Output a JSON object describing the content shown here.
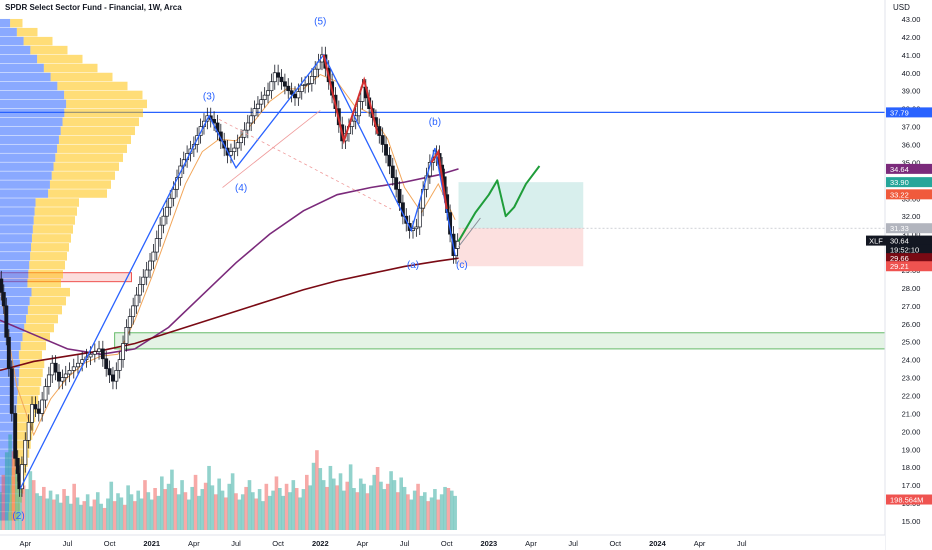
{
  "header": {
    "title": "SPDR Select Sector Fund - Financial, 1W, Arca",
    "currency": "USD",
    "ticker": "XLF"
  },
  "chart_data": {
    "type": "candlestick",
    "y_range": [
      14.5,
      43.5
    ],
    "y_ticks": [
      15,
      16,
      17,
      18,
      19,
      20,
      21,
      22,
      23,
      24,
      25,
      26,
      27,
      28,
      29,
      30,
      31,
      32,
      33,
      34,
      35,
      36,
      37,
      38,
      39,
      40,
      41,
      42,
      43
    ],
    "y_tick_labels": [
      "15.00",
      "16.00",
      "17.00",
      "18.00",
      "19.00",
      "20.00",
      "21.00",
      "22.00",
      "23.00",
      "24.00",
      "25.00",
      "26.00",
      "27.00",
      "28.00",
      "29.00",
      "30.00",
      "31.00",
      "32.00",
      "33.00",
      "34.00",
      "35.00",
      "36.00",
      "37.00",
      "38.00",
      "39.00",
      "40.00",
      "41.00",
      "42.00",
      "43.00"
    ],
    "x_range": [
      2020.1,
      2025.35
    ],
    "x_ticks": [
      {
        "x": 2020.25,
        "label": "Apr"
      },
      {
        "x": 2020.5,
        "label": "Jul"
      },
      {
        "x": 2020.75,
        "label": "Oct"
      },
      {
        "x": 2021.0,
        "label": "2021"
      },
      {
        "x": 2021.25,
        "label": "Apr"
      },
      {
        "x": 2021.5,
        "label": "Jul"
      },
      {
        "x": 2021.75,
        "label": "Oct"
      },
      {
        "x": 2022.0,
        "label": "2022"
      },
      {
        "x": 2022.25,
        "label": "Apr"
      },
      {
        "x": 2022.5,
        "label": "Jul"
      },
      {
        "x": 2022.75,
        "label": "Oct"
      },
      {
        "x": 2023.0,
        "label": "2023"
      },
      {
        "x": 2023.25,
        "label": "Apr"
      },
      {
        "x": 2023.5,
        "label": "Jul"
      },
      {
        "x": 2023.75,
        "label": "Oct"
      },
      {
        "x": 2024.0,
        "label": "2024"
      },
      {
        "x": 2024.25,
        "label": "Apr"
      },
      {
        "x": 2024.5,
        "label": "Jul"
      }
    ],
    "price_path": [
      [
        2020.1,
        28.5
      ],
      [
        2020.13,
        27.0
      ],
      [
        2020.16,
        23.5
      ],
      [
        2020.2,
        18.5
      ],
      [
        2020.22,
        16.8
      ],
      [
        2020.26,
        19.5
      ],
      [
        2020.3,
        21.5
      ],
      [
        2020.34,
        21.0
      ],
      [
        2020.38,
        22.5
      ],
      [
        2020.42,
        23.8
      ],
      [
        2020.46,
        22.8
      ],
      [
        2020.5,
        23.2
      ],
      [
        2020.55,
        23.6
      ],
      [
        2020.6,
        24.0
      ],
      [
        2020.65,
        24.3
      ],
      [
        2020.7,
        24.6
      ],
      [
        2020.74,
        23.5
      ],
      [
        2020.78,
        22.8
      ],
      [
        2020.82,
        24.0
      ],
      [
        2020.86,
        25.8
      ],
      [
        2020.9,
        27.0
      ],
      [
        2020.94,
        28.2
      ],
      [
        2020.98,
        29.0
      ],
      [
        2021.02,
        30.0
      ],
      [
        2021.06,
        31.5
      ],
      [
        2021.1,
        32.5
      ],
      [
        2021.14,
        33.5
      ],
      [
        2021.18,
        34.8
      ],
      [
        2021.22,
        35.5
      ],
      [
        2021.26,
        36.0
      ],
      [
        2021.3,
        37.0
      ],
      [
        2021.34,
        37.6
      ],
      [
        2021.38,
        37.2
      ],
      [
        2021.42,
        36.2
      ],
      [
        2021.46,
        35.4
      ],
      [
        2021.5,
        35.8
      ],
      [
        2021.54,
        36.4
      ],
      [
        2021.58,
        37.2
      ],
      [
        2021.62,
        38.0
      ],
      [
        2021.66,
        38.5
      ],
      [
        2021.7,
        39.0
      ],
      [
        2021.74,
        40.0
      ],
      [
        2021.78,
        39.5
      ],
      [
        2021.82,
        39.0
      ],
      [
        2021.86,
        38.6
      ],
      [
        2021.9,
        39.3
      ],
      [
        2021.94,
        39.4
      ],
      [
        2021.98,
        40.2
      ],
      [
        2022.02,
        41.0
      ],
      [
        2022.06,
        39.5
      ],
      [
        2022.1,
        38.0
      ],
      [
        2022.14,
        36.2
      ],
      [
        2022.18,
        37.0
      ],
      [
        2022.22,
        37.6
      ],
      [
        2022.26,
        39.2
      ],
      [
        2022.3,
        38.0
      ],
      [
        2022.34,
        37.0
      ],
      [
        2022.38,
        36.0
      ],
      [
        2022.42,
        34.8
      ],
      [
        2022.46,
        33.5
      ],
      [
        2022.5,
        32.0
      ],
      [
        2022.54,
        31.2
      ],
      [
        2022.58,
        31.4
      ],
      [
        2022.62,
        33.5
      ],
      [
        2022.66,
        35.0
      ],
      [
        2022.7,
        35.5
      ],
      [
        2022.73,
        34.2
      ],
      [
        2022.76,
        32.2
      ],
      [
        2022.8,
        29.8
      ],
      [
        2022.82,
        30.6
      ]
    ],
    "volume": [
      [
        2020.1,
        7.2
      ],
      [
        2020.12,
        10.5
      ],
      [
        2020.14,
        14.8
      ],
      [
        2020.16,
        18.2
      ],
      [
        2020.18,
        15.0
      ],
      [
        2020.2,
        11.5
      ],
      [
        2020.22,
        9.8
      ],
      [
        2020.24,
        8.5
      ],
      [
        2020.26,
        7.8
      ],
      [
        2020.28,
        11.2
      ],
      [
        2020.3,
        9.5
      ],
      [
        2020.32,
        7.0
      ],
      [
        2020.34,
        6.5
      ],
      [
        2020.36,
        8.2
      ],
      [
        2020.38,
        6.0
      ],
      [
        2020.4,
        7.5
      ],
      [
        2020.42,
        5.8
      ],
      [
        2020.44,
        6.8
      ],
      [
        2020.46,
        5.2
      ],
      [
        2020.48,
        7.8
      ],
      [
        2020.5,
        6.5
      ],
      [
        2020.52,
        5.0
      ],
      [
        2020.54,
        8.8
      ],
      [
        2020.56,
        6.2
      ],
      [
        2020.58,
        4.8
      ],
      [
        2020.6,
        5.5
      ],
      [
        2020.62,
        6.8
      ],
      [
        2020.64,
        4.5
      ],
      [
        2020.66,
        5.8
      ],
      [
        2020.68,
        7.2
      ],
      [
        2020.7,
        5.0
      ],
      [
        2020.72,
        4.2
      ],
      [
        2020.74,
        6.0
      ],
      [
        2020.76,
        9.2
      ],
      [
        2020.78,
        5.5
      ],
      [
        2020.8,
        7.0
      ],
      [
        2020.82,
        6.2
      ],
      [
        2020.84,
        4.8
      ],
      [
        2020.86,
        8.5
      ],
      [
        2020.88,
        6.8
      ],
      [
        2020.9,
        5.5
      ],
      [
        2020.92,
        7.5
      ],
      [
        2020.94,
        6.0
      ],
      [
        2020.96,
        9.5
      ],
      [
        2020.98,
        7.2
      ],
      [
        2021.0,
        5.8
      ],
      [
        2021.02,
        8.0
      ],
      [
        2021.04,
        6.5
      ],
      [
        2021.06,
        10.2
      ],
      [
        2021.08,
        7.8
      ],
      [
        2021.1,
        8.8
      ],
      [
        2021.12,
        11.5
      ],
      [
        2021.14,
        8.0
      ],
      [
        2021.16,
        6.8
      ],
      [
        2021.18,
        9.5
      ],
      [
        2021.2,
        7.2
      ],
      [
        2021.22,
        5.8
      ],
      [
        2021.24,
        8.2
      ],
      [
        2021.26,
        10.5
      ],
      [
        2021.28,
        6.5
      ],
      [
        2021.3,
        7.8
      ],
      [
        2021.32,
        9.0
      ],
      [
        2021.34,
        12.2
      ],
      [
        2021.36,
        8.5
      ],
      [
        2021.38,
        6.8
      ],
      [
        2021.4,
        9.8
      ],
      [
        2021.42,
        7.5
      ],
      [
        2021.44,
        6.2
      ],
      [
        2021.46,
        8.8
      ],
      [
        2021.48,
        10.8
      ],
      [
        2021.5,
        7.0
      ],
      [
        2021.52,
        5.8
      ],
      [
        2021.54,
        6.8
      ],
      [
        2021.56,
        8.2
      ],
      [
        2021.58,
        9.5
      ],
      [
        2021.6,
        7.2
      ],
      [
        2021.62,
        6.0
      ],
      [
        2021.64,
        7.8
      ],
      [
        2021.66,
        5.5
      ],
      [
        2021.68,
        8.8
      ],
      [
        2021.7,
        6.5
      ],
      [
        2021.72,
        7.5
      ],
      [
        2021.74,
        10.2
      ],
      [
        2021.76,
        8.0
      ],
      [
        2021.78,
        6.5
      ],
      [
        2021.8,
        8.8
      ],
      [
        2021.82,
        7.2
      ],
      [
        2021.84,
        9.5
      ],
      [
        2021.86,
        8.0
      ],
      [
        2021.88,
        6.2
      ],
      [
        2021.9,
        7.8
      ],
      [
        2021.92,
        10.5
      ],
      [
        2021.94,
        8.5
      ],
      [
        2021.96,
        12.8
      ],
      [
        2021.98,
        15.2
      ],
      [
        2022.0,
        11.8
      ],
      [
        2022.02,
        9.5
      ],
      [
        2022.04,
        8.2
      ],
      [
        2022.06,
        12.2
      ],
      [
        2022.08,
        9.8
      ],
      [
        2022.1,
        8.5
      ],
      [
        2022.12,
        10.8
      ],
      [
        2022.14,
        7.5
      ],
      [
        2022.16,
        9.2
      ],
      [
        2022.18,
        12.5
      ],
      [
        2022.2,
        8.0
      ],
      [
        2022.22,
        7.2
      ],
      [
        2022.24,
        9.8
      ],
      [
        2022.26,
        8.8
      ],
      [
        2022.28,
        7.0
      ],
      [
        2022.3,
        8.5
      ],
      [
        2022.32,
        10.5
      ],
      [
        2022.34,
        12.0
      ],
      [
        2022.36,
        9.2
      ],
      [
        2022.38,
        7.8
      ],
      [
        2022.4,
        8.8
      ],
      [
        2022.42,
        11.2
      ],
      [
        2022.44,
        9.5
      ],
      [
        2022.46,
        7.2
      ],
      [
        2022.48,
        10.0
      ],
      [
        2022.5,
        8.2
      ],
      [
        2022.52,
        6.8
      ],
      [
        2022.54,
        5.8
      ],
      [
        2022.56,
        7.5
      ],
      [
        2022.58,
        8.8
      ],
      [
        2022.6,
        6.5
      ],
      [
        2022.62,
        7.2
      ],
      [
        2022.64,
        5.5
      ],
      [
        2022.66,
        6.2
      ],
      [
        2022.68,
        7.8
      ],
      [
        2022.7,
        5.8
      ],
      [
        2022.72,
        6.8
      ],
      [
        2022.74,
        8.2
      ],
      [
        2022.76,
        8.0
      ],
      [
        2022.78,
        7.5
      ],
      [
        2022.8,
        6.5
      ]
    ],
    "series": [
      {
        "name": "",
        "color": "#f2a65a",
        "points": [
          [
            2020.1,
            28.0
          ],
          [
            2020.2,
            22.5
          ],
          [
            2020.3,
            19.8
          ],
          [
            2020.4,
            21.8
          ],
          [
            2020.5,
            23.0
          ],
          [
            2020.6,
            23.8
          ],
          [
            2020.7,
            24.2
          ],
          [
            2020.8,
            24.3
          ],
          [
            2020.9,
            26.2
          ],
          [
            2021.0,
            28.6
          ],
          [
            2021.1,
            31.2
          ],
          [
            2021.2,
            33.8
          ],
          [
            2021.3,
            35.6
          ],
          [
            2021.4,
            36.3
          ],
          [
            2021.5,
            36.2
          ],
          [
            2021.6,
            37.2
          ],
          [
            2021.7,
            38.4
          ],
          [
            2021.8,
            39.1
          ],
          [
            2021.9,
            39.1
          ],
          [
            2022.0,
            39.9
          ],
          [
            2022.1,
            39.5
          ],
          [
            2022.2,
            38.2
          ],
          [
            2022.3,
            37.7
          ],
          [
            2022.4,
            36.3
          ],
          [
            2022.5,
            33.6
          ],
          [
            2022.6,
            32.2
          ],
          [
            2022.7,
            33.8
          ],
          [
            2022.8,
            31.8
          ]
        ]
      },
      {
        "name": "",
        "color": "#7b2a7b",
        "points": [
          [
            2020.1,
            26.2
          ],
          [
            2020.3,
            25.4
          ],
          [
            2020.5,
            24.6
          ],
          [
            2020.7,
            24.3
          ],
          [
            2020.9,
            24.6
          ],
          [
            2021.1,
            25.8
          ],
          [
            2021.3,
            27.6
          ],
          [
            2021.5,
            29.4
          ],
          [
            2021.7,
            31.0
          ],
          [
            2021.9,
            32.3
          ],
          [
            2022.1,
            33.2
          ],
          [
            2022.3,
            33.6
          ],
          [
            2022.5,
            33.9
          ],
          [
            2022.7,
            34.3
          ],
          [
            2022.82,
            34.64
          ]
        ]
      },
      {
        "name": "",
        "color": "#7a0a14",
        "points": [
          [
            2020.1,
            23.4
          ],
          [
            2020.3,
            23.9
          ],
          [
            2020.5,
            24.2
          ],
          [
            2020.7,
            24.5
          ],
          [
            2020.9,
            24.9
          ],
          [
            2021.1,
            25.5
          ],
          [
            2021.3,
            26.1
          ],
          [
            2021.5,
            26.7
          ],
          [
            2021.7,
            27.3
          ],
          [
            2021.9,
            27.9
          ],
          [
            2022.1,
            28.4
          ],
          [
            2022.3,
            28.8
          ],
          [
            2022.5,
            29.2
          ],
          [
            2022.7,
            29.5
          ],
          [
            2022.82,
            29.66
          ]
        ]
      }
    ],
    "wave_labels": [
      {
        "label": "(2)",
        "x": 2020.21,
        "y": 15.1
      },
      {
        "label": "(3)",
        "x": 2021.34,
        "y": 38.5
      },
      {
        "label": "(4)",
        "x": 2021.53,
        "y": 33.4
      },
      {
        "label": "(5)",
        "x": 2022.0,
        "y": 42.7
      },
      {
        "label": "(a)",
        "x": 2022.55,
        "y": 29.1
      },
      {
        "label": "(b)",
        "x": 2022.68,
        "y": 37.1
      },
      {
        "label": "(c)",
        "x": 2022.84,
        "y": 29.1
      }
    ],
    "horizontal_line": {
      "value": 37.79,
      "color": "#2962ff"
    },
    "projection_path": [
      [
        2022.82,
        30.6
      ],
      [
        2022.92,
        32.2
      ],
      [
        2023.0,
        33.2
      ],
      [
        2023.05,
        34.0
      ],
      [
        2023.07,
        33.2
      ],
      [
        2023.1,
        32.0
      ],
      [
        2023.15,
        32.5
      ],
      [
        2023.22,
        33.8
      ],
      [
        2023.3,
        34.8
      ]
    ],
    "price_labels": [
      {
        "value": "43.00",
        "y": 43.0
      },
      {
        "value": "37.79",
        "y": 37.79,
        "color": "#2962ff"
      },
      {
        "value": "34.64",
        "y": 34.64,
        "color": "#7b2a7b"
      },
      {
        "value": "33.90",
        "y": 33.9,
        "color": "#26a69a"
      },
      {
        "value": "33.22",
        "y": 33.22,
        "color": "#f05a3c"
      },
      {
        "value": "31.33",
        "y": 31.33,
        "color": "#b2b5be"
      },
      {
        "value": "30.64",
        "y": 30.64,
        "color": "#131722"
      },
      {
        "value": "19:52:10",
        "y": 30.15,
        "color": "#131722"
      },
      {
        "value": "29.66",
        "y": 29.66,
        "color": "#7a0a14"
      },
      {
        "value": "29.21",
        "y": 29.21,
        "color": "#ef5350"
      },
      {
        "value": "198.564M",
        "y": 16.2,
        "color": "#ef5350"
      }
    ],
    "profit_zone": {
      "x": [
        2022.82,
        2023.56
      ],
      "y": [
        31.33,
        33.9
      ]
    },
    "loss_zone": {
      "x": [
        2022.82,
        2023.56
      ],
      "y": [
        29.21,
        31.33
      ]
    },
    "support_zone": {
      "x": [
        2020.78,
        2025.35
      ],
      "y": [
        24.6,
        25.5
      ]
    },
    "left_zone": {
      "x": [
        2020.1,
        2020.88
      ],
      "y": [
        28.35,
        28.85
      ]
    },
    "colors": {
      "up": "#26a69a",
      "down": "#ef5350",
      "candle": "#131722",
      "projection": "#1f9d3a",
      "wave_line": "#2962ff",
      "wave_label": "#2962ff"
    }
  }
}
